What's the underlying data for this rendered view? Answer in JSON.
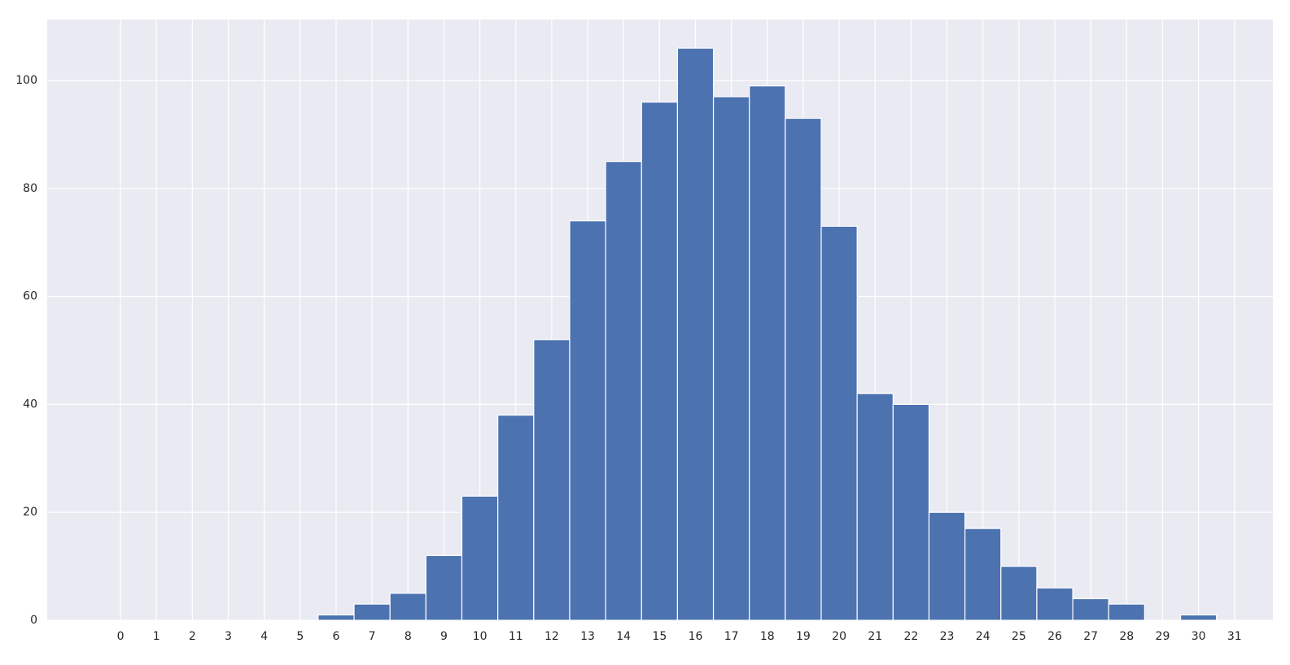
{
  "chart_data": {
    "type": "histogram",
    "bins": [
      5.5,
      6.5,
      7.5,
      8.5,
      9.5,
      10.5,
      11.5,
      12.5,
      13.5,
      14.5,
      15.5,
      16.5,
      17.5,
      18.5,
      19.5,
      20.5,
      21.5,
      22.5,
      23.5,
      24.5,
      25.5,
      26.5,
      27.5,
      28.5,
      29.5,
      30.5
    ],
    "values": [
      1,
      3,
      5,
      12,
      23,
      38,
      52,
      74,
      85,
      96,
      106,
      97,
      99,
      93,
      73,
      42,
      40,
      20,
      17,
      10,
      6,
      4,
      3,
      0,
      1
    ],
    "color": "#4c72b0",
    "xlim": [
      -2.04,
      32.07
    ],
    "xticks": [
      0,
      1,
      2,
      3,
      4,
      5,
      6,
      7,
      8,
      9,
      10,
      11,
      12,
      13,
      14,
      15,
      16,
      17,
      18,
      19,
      20,
      21,
      22,
      23,
      24,
      25,
      26,
      27,
      28,
      29,
      30,
      31
    ],
    "ylim": [
      0,
      111.3
    ],
    "yticks": [
      0,
      20,
      40,
      60,
      80,
      100
    ],
    "grid": true
  }
}
